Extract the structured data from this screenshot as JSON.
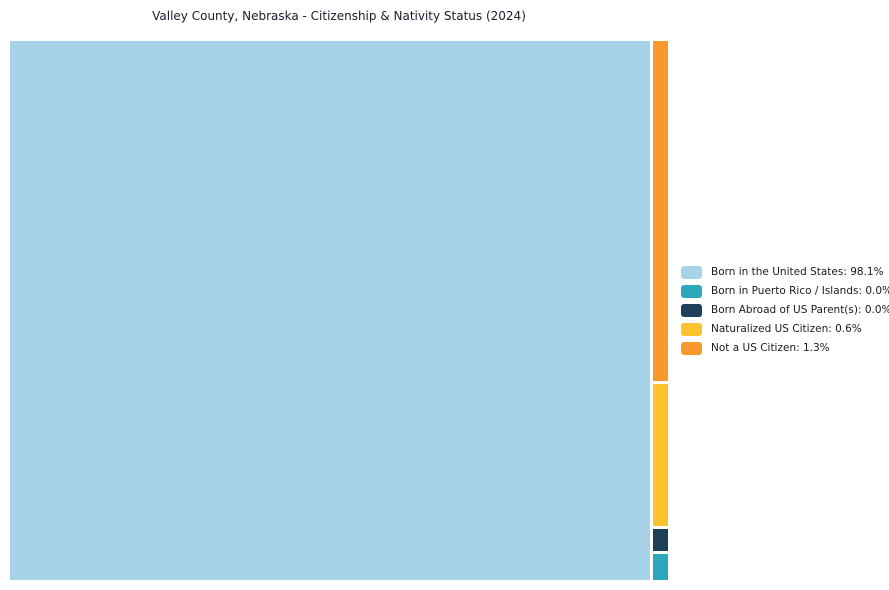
{
  "title": "Valley County, Nebraska - Citizenship & Nativity Status (2024)",
  "chart_data": {
    "type": "treemap",
    "title": "Valley County, Nebraska - Citizenship & Nativity Status (2024)",
    "categories": [
      "Born in the United States",
      "Born in Puerto Rico / Islands",
      "Born Abroad of US Parent(s)",
      "Naturalized US Citizen",
      "Not a US Citizen"
    ],
    "values": [
      98.1,
      0.0,
      0.0,
      0.6,
      1.3
    ],
    "unit": "percent",
    "colors": [
      "#A6D3E8",
      "#2BA8BC",
      "#1F3E5A",
      "#FCC32F",
      "#F8992E"
    ],
    "legend_position": "right",
    "legend": [
      {
        "label": "Born in the United States: 98.1%",
        "color": "#A6D3E8"
      },
      {
        "label": "Born in Puerto Rico / Islands: 0.0%",
        "color": "#2BA8BC"
      },
      {
        "label": "Born Abroad of US Parent(s): 0.0%",
        "color": "#1F3E5A"
      },
      {
        "label": "Naturalized US Citizen: 0.6%",
        "color": "#FCC32F"
      },
      {
        "label": "Not a US Citizen: 1.3%",
        "color": "#F8992E"
      }
    ]
  }
}
